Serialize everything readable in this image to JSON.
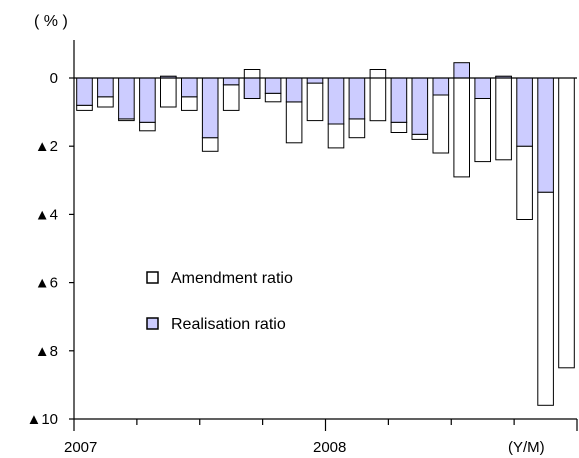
{
  "chart_data": {
    "type": "bar",
    "unit_label": "( % )",
    "x_end_label": "(Y/M)",
    "year_labels": [
      "2007",
      "2008"
    ],
    "y_tick_labels": [
      "0",
      "▲2",
      "▲4",
      "▲6",
      "▲8",
      "▲10"
    ],
    "ylim": [
      -10,
      0
    ],
    "colors": {
      "amendment": "#ffffff",
      "realisation": "#ccccff",
      "stroke": "#000000"
    },
    "legend": {
      "placement": "center-left"
    },
    "series": [
      {
        "name": "Amendment ratio",
        "start": [
          -0.8,
          -0.55,
          -1.2,
          -1.3,
          0.05,
          -0.55,
          -1.75,
          -0.2,
          0.25,
          -0.45,
          -0.7,
          -0.15,
          -1.35,
          -1.2,
          0.25,
          -1.3,
          -1.65,
          -0.5,
          0,
          -0.6,
          0.05,
          -2.0,
          -3.35,
          0
        ],
        "end": [
          -0.95,
          -0.85,
          -1.25,
          -1.55,
          -0.85,
          -0.95,
          -2.15,
          -0.95,
          -0.6,
          -0.7,
          -1.9,
          -1.25,
          -2.05,
          -1.75,
          -1.25,
          -1.6,
          -1.8,
          -2.2,
          -2.9,
          -2.45,
          -2.4,
          -4.15,
          -9.6,
          -8.5
        ]
      },
      {
        "name": "Realisation ratio",
        "values": [
          -0.8,
          -0.55,
          -1.2,
          -1.3,
          0.05,
          -0.55,
          -1.75,
          -0.2,
          -0.6,
          -0.45,
          -0.7,
          -0.15,
          -1.35,
          -1.2,
          0,
          -1.3,
          -1.65,
          -0.5,
          0.45,
          -0.6,
          0.05,
          -2.0,
          -3.35,
          0
        ]
      }
    ]
  }
}
